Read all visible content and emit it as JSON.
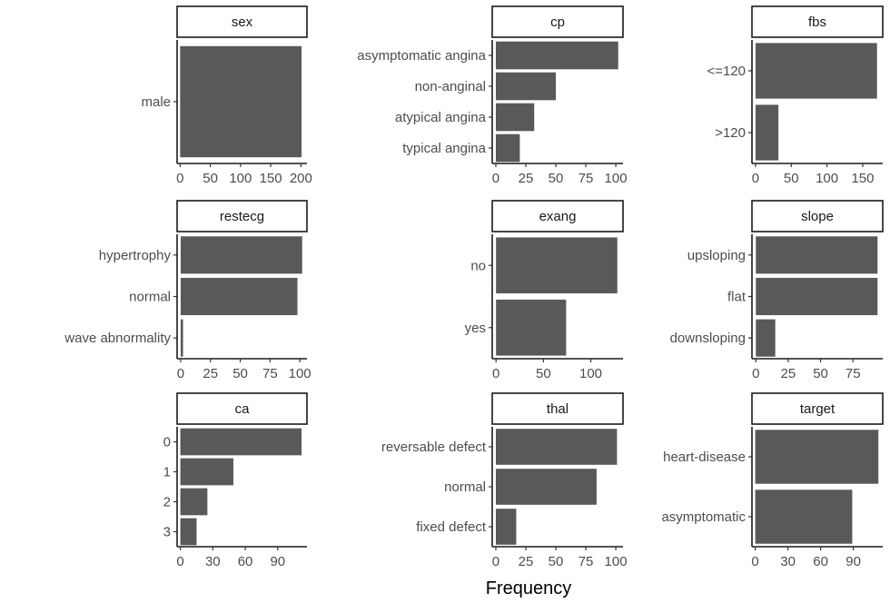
{
  "chart_data": {
    "type": "bar",
    "orientation": "horizontal",
    "layout": "facet grid 3x3, free scales",
    "xlabel": "Frequency",
    "bar_color": "#595959",
    "panels": [
      {
        "title": "sex",
        "categories": [
          "male"
        ],
        "values": [
          201
        ],
        "xticks": [
          0,
          50,
          100,
          150,
          200
        ],
        "xlim": [
          -5,
          210
        ]
      },
      {
        "title": "cp",
        "categories": [
          "asymptomatic angina",
          "non-anginal",
          "atypical angina",
          "typical angina"
        ],
        "values": [
          102,
          50,
          32,
          20
        ],
        "xticks": [
          0,
          25,
          50,
          75,
          100
        ],
        "xlim": [
          -3,
          106
        ]
      },
      {
        "title": "fbs",
        "categories": [
          "<=120",
          ">120"
        ],
        "values": [
          170,
          32
        ],
        "xticks": [
          0,
          50,
          100,
          150
        ],
        "xlim": [
          -5,
          178
        ]
      },
      {
        "title": "restecg",
        "categories": [
          "hypertrophy",
          "normal",
          "wave abnormality"
        ],
        "values": [
          102,
          98,
          2
        ],
        "xticks": [
          0,
          25,
          50,
          75,
          100
        ],
        "xlim": [
          -3,
          106
        ]
      },
      {
        "title": "exang",
        "categories": [
          "no",
          "yes"
        ],
        "values": [
          128,
          74
        ],
        "xticks": [
          0,
          50,
          100
        ],
        "xlim": [
          -4,
          134
        ]
      },
      {
        "title": "slope",
        "categories": [
          "upsloping",
          "flat",
          "downsloping"
        ],
        "values": [
          94,
          94,
          15
        ],
        "xticks": [
          0,
          25,
          50,
          75
        ],
        "xlim": [
          -3,
          98
        ]
      },
      {
        "title": "ca",
        "categories": [
          "0",
          "1",
          "2",
          "3"
        ],
        "values": [
          112,
          49,
          25,
          15
        ],
        "xticks": [
          0,
          30,
          60,
          90
        ],
        "xlim": [
          -3,
          117
        ]
      },
      {
        "title": "thal",
        "categories": [
          "reversable defect",
          "normal",
          "fixed defect"
        ],
        "values": [
          101,
          84,
          17
        ],
        "xticks": [
          0,
          25,
          50,
          75,
          100
        ],
        "xlim": [
          -3,
          106
        ]
      },
      {
        "title": "target",
        "categories": [
          "heart-disease",
          "asymptomatic"
        ],
        "values": [
          113,
          89
        ],
        "xticks": [
          0,
          30,
          60,
          90
        ],
        "xlim": [
          -3,
          117
        ]
      }
    ]
  }
}
